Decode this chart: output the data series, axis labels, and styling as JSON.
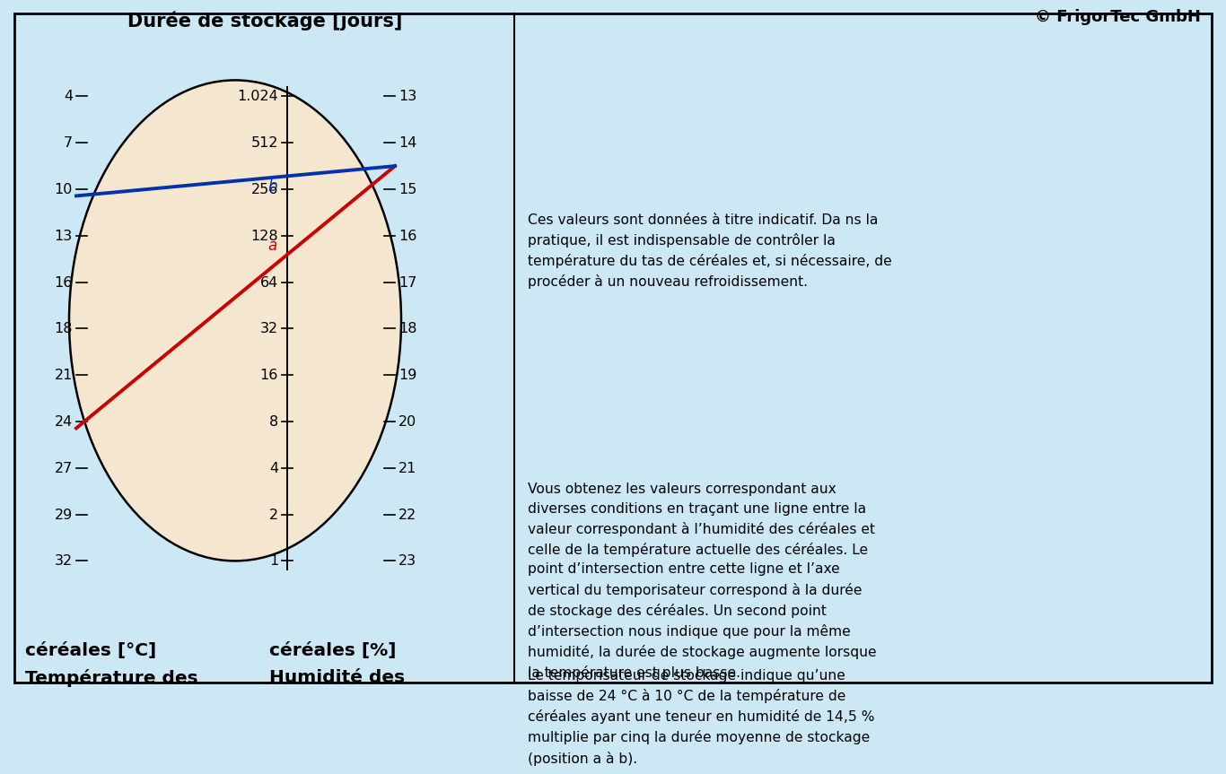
{
  "background_color": "#cce8f4",
  "circle_fill_color": "#f5e6d0",
  "circle_edge_color": "#000000",
  "border_color": "#000000",
  "left_axis_label_line1": "Température des",
  "left_axis_label_line2": "céréales [°C]",
  "right_axis_label_line1": "Humidité des",
  "right_axis_label_line2": "céréales [%]",
  "bottom_axis_label": "Durée de stockage [jours]",
  "left_ticks": [
    32,
    29,
    27,
    24,
    21,
    18,
    16,
    13,
    10,
    7,
    4
  ],
  "center_ticks": [
    "1",
    "2",
    "4",
    "8",
    "16",
    "32",
    "64",
    "128",
    "256",
    "512",
    "1.024"
  ],
  "right_ticks": [
    23,
    22,
    21,
    20,
    19,
    18,
    17,
    16,
    15,
    14,
    13
  ],
  "red_line_temp": 24,
  "red_line_humid": 14.5,
  "red_label": "a",
  "red_color": "#cc0000",
  "blue_line_temp": 10,
  "blue_line_humid": 14.5,
  "blue_label": "b",
  "blue_color": "#0033aa",
  "text_paragraph1": "Le temporisateur de stockage indique qu’une\nbaisse de 24 °C à 10 °C de la température de\ncéréales ayant une teneur en humidité de 14,5 %\nmultiplie par cinq la durée moyenne de stockage\n(position a à b).",
  "text_paragraph2": "Vous obtenez les valeurs correspondant aux\ndiverses conditions en traçant une ligne entre la\nvaleur correspondant à l’humidité des céréales et\ncelle de la température actuelle des céréales. Le\npoint d’intersection entre cette ligne et l’axe\nvertical du temporisateur correspond à la durée\nde stockage des céréales. Un second point\nd’intersection nous indique que pour la même\nhumidité, la durée de stockage augmente lorsque\nla température est plus basse.",
  "text_paragraph3": "Ces valeurs sont données à titre indicatif. Da ns la\npratique, il est indispensable de contrôler la\ntempérature du tas de céréales et, si nécessaire, de\nprocéder à un nouveau refroidissement.",
  "text_copyright": "© FrigorTec GmbH"
}
